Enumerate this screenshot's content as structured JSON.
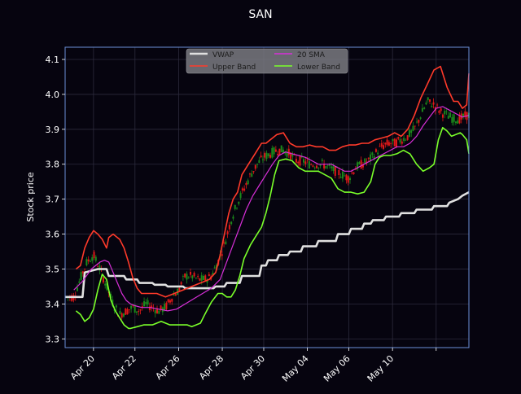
{
  "chart_data": {
    "type": "line",
    "title": "SAN",
    "ylabel": "Stock price",
    "xlabel": "",
    "ylim": [
      3.275,
      4.135
    ],
    "xlim": [
      0,
      185
    ],
    "yticks": [
      3.3,
      3.4,
      3.5,
      3.6,
      3.7,
      3.8,
      3.9,
      4.0,
      4.1
    ],
    "xticks": [
      {
        "x": 13,
        "label": "Apr 20"
      },
      {
        "x": 32,
        "label": "Apr 22"
      },
      {
        "x": 52,
        "label": "Apr 26"
      },
      {
        "x": 72,
        "label": "Apr 28"
      },
      {
        "x": 91,
        "label": "Apr 30"
      },
      {
        "x": 111,
        "label": "May 04"
      },
      {
        "x": 130,
        "label": "May 06"
      },
      {
        "x": 150,
        "label": "May 10"
      },
      {
        "x": 170,
        "label": ""
      }
    ],
    "grid": true,
    "legend_position": "top-center",
    "colors": {
      "background": "#06040f",
      "axes": "#6c8fd8",
      "grid": "#2c2a3c",
      "text": "#ffffff",
      "up_candle": "#1b8a1b",
      "down_candle": "#e01818"
    },
    "series": [
      {
        "name": "VWAP",
        "color": "#e0e0e0",
        "x": [
          0,
          8,
          9,
          15,
          19,
          20,
          27,
          28,
          33,
          34,
          40,
          41,
          46,
          47,
          54,
          55,
          68,
          69,
          73,
          74,
          80,
          81,
          89,
          90,
          92,
          93,
          97,
          98,
          102,
          103,
          108,
          109,
          115,
          116,
          124,
          125,
          130,
          131,
          136,
          137,
          140,
          141,
          146,
          147,
          153,
          154,
          160,
          161,
          168,
          169,
          175,
          176,
          180,
          182,
          185
        ],
        "values": [
          3.42,
          3.42,
          3.49,
          3.5,
          3.5,
          3.48,
          3.48,
          3.47,
          3.47,
          3.46,
          3.46,
          3.455,
          3.455,
          3.45,
          3.45,
          3.445,
          3.445,
          3.45,
          3.45,
          3.46,
          3.46,
          3.48,
          3.48,
          3.51,
          3.51,
          3.525,
          3.525,
          3.54,
          3.54,
          3.55,
          3.55,
          3.565,
          3.565,
          3.58,
          3.58,
          3.6,
          3.6,
          3.615,
          3.615,
          3.63,
          3.63,
          3.64,
          3.64,
          3.65,
          3.65,
          3.66,
          3.66,
          3.67,
          3.67,
          3.68,
          3.68,
          3.69,
          3.7,
          3.71,
          3.72
        ]
      },
      {
        "name": "Upper Band",
        "color": "#ff3a2a",
        "x": [
          5,
          7,
          9,
          11,
          13,
          15,
          17,
          19,
          20,
          22,
          25,
          27,
          29,
          31,
          33,
          35,
          38,
          42,
          46,
          50,
          54,
          58,
          62,
          66,
          69,
          71,
          73,
          75,
          77,
          79,
          81,
          84,
          87,
          90,
          92,
          94,
          97,
          100,
          103,
          106,
          109,
          112,
          115,
          118,
          121,
          124,
          127,
          130,
          133,
          136,
          139,
          142,
          145,
          148,
          151,
          154,
          157,
          160,
          163,
          166,
          169,
          172,
          175,
          178,
          180,
          182,
          184,
          185
        ],
        "values": [
          3.5,
          3.51,
          3.56,
          3.59,
          3.61,
          3.6,
          3.585,
          3.56,
          3.59,
          3.6,
          3.585,
          3.56,
          3.52,
          3.475,
          3.445,
          3.43,
          3.43,
          3.43,
          3.42,
          3.43,
          3.44,
          3.45,
          3.46,
          3.47,
          3.49,
          3.54,
          3.6,
          3.66,
          3.7,
          3.72,
          3.77,
          3.8,
          3.83,
          3.86,
          3.86,
          3.87,
          3.885,
          3.89,
          3.86,
          3.85,
          3.85,
          3.855,
          3.85,
          3.85,
          3.84,
          3.84,
          3.85,
          3.855,
          3.855,
          3.86,
          3.86,
          3.87,
          3.875,
          3.88,
          3.89,
          3.88,
          3.9,
          3.94,
          3.99,
          4.03,
          4.07,
          4.08,
          4.02,
          3.98,
          3.98,
          3.96,
          3.97,
          4.06
        ]
      },
      {
        "name": "20 SMA",
        "color": "#d82fd8",
        "x": [
          4,
          8,
          12,
          16,
          18,
          20,
          22,
          24,
          26,
          28,
          30,
          32,
          35,
          39,
          43,
          47,
          51,
          55,
          59,
          63,
          67,
          71,
          74,
          77,
          80,
          83,
          86,
          89,
          92,
          95,
          98,
          101,
          104,
          107,
          110,
          113,
          116,
          119,
          122,
          125,
          128,
          131,
          134,
          137,
          140,
          143,
          146,
          149,
          152,
          155,
          158,
          161,
          164,
          167,
          170,
          173,
          176,
          179,
          182,
          185
        ],
        "values": [
          3.44,
          3.465,
          3.5,
          3.52,
          3.525,
          3.52,
          3.49,
          3.46,
          3.43,
          3.41,
          3.4,
          3.395,
          3.39,
          3.39,
          3.385,
          3.38,
          3.385,
          3.4,
          3.415,
          3.43,
          3.445,
          3.47,
          3.52,
          3.57,
          3.62,
          3.67,
          3.71,
          3.74,
          3.77,
          3.8,
          3.825,
          3.835,
          3.83,
          3.825,
          3.82,
          3.81,
          3.8,
          3.8,
          3.8,
          3.79,
          3.78,
          3.78,
          3.79,
          3.8,
          3.81,
          3.82,
          3.83,
          3.84,
          3.85,
          3.85,
          3.86,
          3.88,
          3.91,
          3.935,
          3.96,
          3.965,
          3.955,
          3.945,
          3.935,
          3.94
        ]
      },
      {
        "name": "Lower Band",
        "color": "#7aff2a",
        "x": [
          5,
          7,
          9,
          11,
          13,
          15,
          17,
          19,
          21,
          23,
          25,
          27,
          29,
          30,
          33,
          36,
          40,
          44,
          48,
          52,
          56,
          58,
          60,
          62,
          64,
          67,
          70,
          72,
          74,
          76,
          78,
          80,
          82,
          85,
          88,
          90,
          92,
          94,
          96,
          98,
          101,
          104,
          107,
          110,
          113,
          116,
          119,
          122,
          125,
          128,
          131,
          134,
          137,
          140,
          142,
          144,
          146,
          149,
          152,
          155,
          158,
          161,
          164,
          167,
          169,
          171,
          173,
          175,
          177,
          179,
          181,
          182,
          184,
          185
        ],
        "values": [
          3.38,
          3.37,
          3.35,
          3.36,
          3.385,
          3.44,
          3.485,
          3.47,
          3.41,
          3.38,
          3.36,
          3.34,
          3.33,
          3.33,
          3.335,
          3.34,
          3.34,
          3.35,
          3.34,
          3.34,
          3.34,
          3.335,
          3.34,
          3.345,
          3.37,
          3.405,
          3.43,
          3.43,
          3.42,
          3.42,
          3.44,
          3.48,
          3.53,
          3.57,
          3.6,
          3.62,
          3.66,
          3.71,
          3.77,
          3.81,
          3.815,
          3.81,
          3.79,
          3.78,
          3.78,
          3.78,
          3.77,
          3.76,
          3.73,
          3.72,
          3.72,
          3.715,
          3.72,
          3.75,
          3.8,
          3.82,
          3.825,
          3.825,
          3.83,
          3.84,
          3.83,
          3.8,
          3.78,
          3.79,
          3.8,
          3.87,
          3.905,
          3.895,
          3.88,
          3.885,
          3.89,
          3.885,
          3.87,
          3.83
        ]
      }
    ],
    "candles_note": "OHLC candlesticks drawn behind lines; values follow the band midpoint (20 SMA) trend",
    "candle_anchors": {
      "x": [
        0,
        4,
        8,
        10,
        13,
        16,
        19,
        22,
        25,
        28,
        31,
        34,
        37,
        40,
        43,
        46,
        49,
        52,
        55,
        58,
        61,
        64,
        67,
        70,
        73,
        76,
        79,
        82,
        85,
        88,
        91,
        94,
        97,
        100,
        103,
        106,
        109,
        112,
        115,
        118,
        121,
        124,
        127,
        130,
        133,
        136,
        139,
        142,
        145,
        148,
        151,
        154,
        157,
        160,
        163,
        166,
        169,
        172,
        175,
        178,
        181,
        184
      ],
      "values": [
        3.42,
        3.42,
        3.49,
        3.52,
        3.54,
        3.5,
        3.45,
        3.4,
        3.37,
        3.38,
        3.39,
        3.38,
        3.4,
        3.39,
        3.38,
        3.39,
        3.42,
        3.44,
        3.48,
        3.48,
        3.47,
        3.47,
        3.48,
        3.52,
        3.57,
        3.64,
        3.69,
        3.73,
        3.77,
        3.8,
        3.82,
        3.83,
        3.84,
        3.84,
        3.83,
        3.81,
        3.81,
        3.8,
        3.8,
        3.8,
        3.79,
        3.78,
        3.77,
        3.76,
        3.79,
        3.8,
        3.81,
        3.83,
        3.85,
        3.86,
        3.86,
        3.87,
        3.88,
        3.9,
        3.94,
        3.98,
        3.97,
        3.95,
        3.94,
        3.93,
        3.93,
        3.94
      ]
    }
  }
}
